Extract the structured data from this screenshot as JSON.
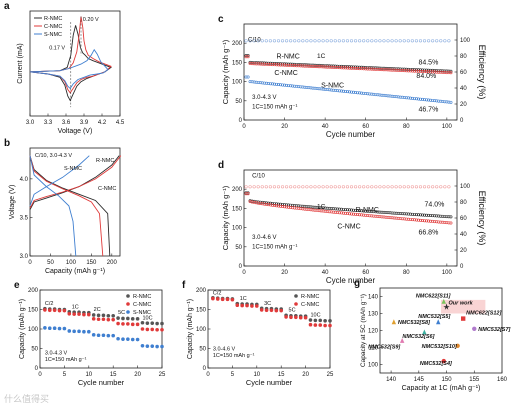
{
  "watermark": "什么值得买",
  "chart_data": [
    {
      "panel": "a",
      "type": "line",
      "xlabel": "Voltage (V)",
      "ylabel": "Current (mA)",
      "xlim": [
        3.0,
        4.5
      ],
      "ylim": [
        -0.4,
        0.55
      ],
      "xticks": [
        "3.0",
        "3.3",
        "3.6",
        "3.9",
        "4.2",
        "4.5"
      ],
      "legend": [
        "R-NMC",
        "C-NMC",
        "S-NMC"
      ],
      "legend_position": "top-left",
      "annotations": [
        "0.20 V",
        "0.17 V"
      ],
      "series": [
        {
          "name": "R-NMC",
          "color": "#2b2b2b",
          "x": [
            3.0,
            3.5,
            3.62,
            3.68,
            3.72,
            3.76,
            3.8,
            3.84,
            3.88,
            3.92,
            3.97,
            4.05,
            4.15,
            4.25,
            4.35,
            4.25,
            4.15,
            4.05,
            3.95,
            3.85,
            3.78,
            3.72,
            3.67,
            3.63,
            3.58,
            3.5,
            3.3,
            3.0
          ],
          "y": [
            0.0,
            0.01,
            0.04,
            0.15,
            0.33,
            0.42,
            0.34,
            0.22,
            0.17,
            0.15,
            0.12,
            0.1,
            0.08,
            0.06,
            0.04,
            0.0,
            -0.02,
            -0.04,
            -0.06,
            -0.09,
            -0.13,
            -0.2,
            -0.26,
            -0.22,
            -0.12,
            -0.05,
            -0.02,
            0.0
          ]
        },
        {
          "name": "C-NMC",
          "color": "#e03a3a",
          "x": [
            3.0,
            3.5,
            3.65,
            3.72,
            3.78,
            3.82,
            3.85,
            3.88,
            3.9,
            3.93,
            3.97,
            4.05,
            4.15,
            4.25,
            4.35,
            4.25,
            4.15,
            4.05,
            3.95,
            3.85,
            3.78,
            3.72,
            3.67,
            3.63,
            3.58,
            3.5,
            3.3,
            3.0
          ],
          "y": [
            0.0,
            0.01,
            0.03,
            0.08,
            0.18,
            0.34,
            0.5,
            0.4,
            0.28,
            0.2,
            0.15,
            0.12,
            0.09,
            0.07,
            0.05,
            0.0,
            -0.02,
            -0.04,
            -0.05,
            -0.07,
            -0.1,
            -0.15,
            -0.19,
            -0.16,
            -0.09,
            -0.04,
            -0.02,
            0.0
          ]
        },
        {
          "name": "S-NMC",
          "color": "#3f7fd0",
          "x": [
            3.0,
            3.5,
            3.65,
            3.75,
            3.85,
            3.95,
            4.02,
            4.07,
            4.12,
            4.18,
            4.25,
            4.3,
            4.22,
            4.12,
            4.0,
            3.9,
            3.8,
            3.72,
            3.67,
            3.63,
            3.58,
            3.5,
            3.3,
            3.0
          ],
          "y": [
            0.0,
            0.01,
            0.03,
            0.05,
            0.07,
            0.1,
            0.15,
            0.2,
            0.16,
            0.09,
            0.05,
            0.02,
            -0.01,
            -0.02,
            -0.03,
            -0.05,
            -0.07,
            -0.11,
            -0.15,
            -0.13,
            -0.08,
            -0.04,
            -0.02,
            0.0
          ]
        }
      ]
    },
    {
      "panel": "b",
      "type": "line",
      "xlabel": "Capacity (mAh g⁻¹)",
      "ylabel": "Voltage (V)",
      "xlim": [
        0,
        220
      ],
      "ylim": [
        3.0,
        4.4
      ],
      "xticks": [
        "0",
        "50",
        "100",
        "150",
        "200"
      ],
      "yticks": [
        "3.0",
        "3.5",
        "4.0"
      ],
      "annotations": [
        "C/10, 3.0-4.3 V",
        "R-NMC",
        "C-NMC",
        "S-NMC"
      ],
      "series": [
        {
          "name": "R-NMC",
          "color": "#2b2b2b",
          "charge_x": [
            0,
            10,
            40,
            80,
            120,
            160,
            200,
            218
          ],
          "charge_y": [
            3.6,
            3.7,
            3.75,
            3.82,
            3.9,
            4.02,
            4.18,
            4.3
          ],
          "discharge_x": [
            0,
            10,
            40,
            80,
            120,
            160,
            190,
            195
          ],
          "discharge_y": [
            4.3,
            4.12,
            3.98,
            3.88,
            3.8,
            3.72,
            3.55,
            3.0
          ]
        },
        {
          "name": "C-NMC",
          "color": "#e03a3a",
          "charge_x": [
            0,
            10,
            40,
            80,
            120,
            160,
            200,
            222
          ],
          "charge_y": [
            3.62,
            3.72,
            3.77,
            3.83,
            3.9,
            4.0,
            4.15,
            4.3
          ],
          "discharge_x": [
            0,
            10,
            40,
            80,
            120,
            150,
            170,
            178
          ],
          "discharge_y": [
            4.3,
            4.1,
            3.97,
            3.87,
            3.78,
            3.7,
            3.55,
            3.0
          ]
        },
        {
          "name": "S-NMC",
          "color": "#3f7fd0",
          "charge_x": [
            0,
            10,
            40,
            80,
            120,
            145
          ],
          "charge_y": [
            3.65,
            3.8,
            3.9,
            4.02,
            4.18,
            4.3
          ],
          "discharge_x": [
            0,
            10,
            40,
            70,
            95,
            105,
            112
          ],
          "discharge_y": [
            4.3,
            4.05,
            3.9,
            3.78,
            3.65,
            3.45,
            3.0
          ]
        }
      ]
    },
    {
      "panel": "c",
      "type": "scatter",
      "xlabel": "Cycle number",
      "ylabel": "Capacity (mAh g⁻¹)",
      "y2label": "Efficiency (%)",
      "xlim": [
        0,
        105
      ],
      "ylim": [
        0,
        250
      ],
      "y2lim": [
        0,
        120
      ],
      "xticks": [
        "0",
        "20",
        "40",
        "60",
        "80",
        "100"
      ],
      "yticks": [
        "0",
        "50",
        "100",
        "150",
        "200"
      ],
      "y2ticks": [
        "0",
        "20",
        "40",
        "60",
        "80",
        "100"
      ],
      "annotations": [
        "C/10",
        "1C",
        "R-NMC",
        "C-NMC",
        "S-NMC",
        "84.5%",
        "84.0%",
        "46.7%",
        "3.0-4.3 V",
        "1C=150 mAh g⁻¹"
      ],
      "series": [
        {
          "name": "R-NMC",
          "color": "#2b2b2b",
          "start": 150,
          "end": 127
        },
        {
          "name": "C-NMC",
          "color": "#e03a3a",
          "start": 147,
          "end": 123
        },
        {
          "name": "S-NMC",
          "color": "#3f7fd0",
          "start": 100,
          "end": 46
        },
        {
          "name": "Efficiency",
          "color": "#8fb0e0",
          "value": 99
        }
      ]
    },
    {
      "panel": "d",
      "type": "scatter",
      "xlabel": "Cycle number",
      "ylabel": "Capacity (mAh g⁻¹)",
      "y2label": "Efficiency (%)",
      "xlim": [
        0,
        105
      ],
      "ylim": [
        0,
        250
      ],
      "y2lim": [
        0,
        120
      ],
      "xticks": [
        "0",
        "20",
        "40",
        "60",
        "80",
        "100"
      ],
      "yticks": [
        "0",
        "50",
        "100",
        "150",
        "200"
      ],
      "y2ticks": [
        "0",
        "20",
        "40",
        "60",
        "80",
        "100"
      ],
      "annotations": [
        "C/10",
        "1C",
        "R-NMC",
        "C-NMC",
        "74.0%",
        "66.8%",
        "3.0-4.6 V",
        "1C=150 mAh g⁻¹"
      ],
      "series": [
        {
          "name": "R-NMC",
          "color": "#2b2b2b",
          "start": 170,
          "end": 128
        },
        {
          "name": "C-NMC",
          "color": "#e03a3a",
          "start": 168,
          "end": 112
        },
        {
          "name": "Efficiency",
          "color": "#f0a0a0",
          "value": 99
        }
      ]
    },
    {
      "panel": "e",
      "type": "scatter",
      "xlabel": "Cycle number",
      "ylabel": "Capacity (mAh g⁻¹)",
      "xlim": [
        0,
        25
      ],
      "ylim": [
        0,
        200
      ],
      "xticks": [
        "0",
        "5",
        "10",
        "15",
        "20",
        "25"
      ],
      "yticks": [
        "0",
        "50",
        "100",
        "150",
        "200"
      ],
      "legend": [
        "R-NMC",
        "C-NMC",
        "S-NMC"
      ],
      "legend_position": "top-right",
      "annotations": [
        "C/2",
        "1C",
        "2C",
        "5C",
        "10C",
        "3.0-4.3 V",
        "1C=150 mAh g⁻¹"
      ],
      "series": [
        {
          "name": "R-NMC",
          "color": "#555555",
          "values": [
            152,
            151,
            151,
            150,
            150,
            144,
            143,
            143,
            142,
            142,
            136,
            135,
            135,
            134,
            134,
            128,
            127,
            127,
            126,
            126,
            116,
            115,
            115,
            114,
            114
          ]
        },
        {
          "name": "C-NMC",
          "color": "#e03a3a",
          "values": [
            149,
            148,
            148,
            147,
            147,
            139,
            138,
            138,
            137,
            137,
            126,
            125,
            125,
            124,
            124,
            114,
            113,
            113,
            112,
            112,
            100,
            99,
            99,
            98,
            98
          ]
        },
        {
          "name": "S-NMC",
          "color": "#3f7fd0",
          "values": [
            103,
            102,
            102,
            101,
            101,
            95,
            94,
            94,
            93,
            93,
            85,
            84,
            84,
            83,
            83,
            75,
            74,
            74,
            73,
            73,
            57,
            56,
            56,
            55,
            55
          ]
        }
      ]
    },
    {
      "panel": "f",
      "type": "scatter",
      "xlabel": "Cycle number",
      "ylabel": "Capacity (mAh g⁻¹)",
      "xlim": [
        0,
        25
      ],
      "ylim": [
        0,
        200
      ],
      "xticks": [
        "0",
        "5",
        "10",
        "15",
        "20",
        "25"
      ],
      "yticks": [
        "0",
        "50",
        "100",
        "150",
        "200"
      ],
      "legend": [
        "R-NMC",
        "C-NMC"
      ],
      "legend_position": "top-right",
      "annotations": [
        "C/2",
        "1C",
        "3C",
        "5C",
        "10C",
        "3.0-4.6 V",
        "1C=150 mAh g⁻¹"
      ],
      "series": [
        {
          "name": "R-NMC",
          "color": "#555555",
          "values": [
            180,
            179,
            178,
            178,
            177,
            165,
            164,
            164,
            163,
            163,
            153,
            152,
            152,
            151,
            151,
            135,
            134,
            134,
            133,
            133,
            123,
            122,
            122,
            121,
            121
          ]
        },
        {
          "name": "C-NMC",
          "color": "#e03a3a",
          "values": [
            178,
            177,
            176,
            176,
            175,
            161,
            160,
            160,
            159,
            159,
            149,
            148,
            148,
            147,
            147,
            131,
            130,
            130,
            129,
            129,
            111,
            110,
            110,
            109,
            109
          ]
        }
      ]
    },
    {
      "panel": "g",
      "type": "scatter",
      "xlabel": "Capacity at 1C (mAh g⁻¹)",
      "ylabel": "Capacity at 5C (mAh g⁻¹)",
      "xlim": [
        138,
        160
      ],
      "ylim": [
        95,
        145
      ],
      "xticks": [
        "140",
        "145",
        "150",
        "155",
        "160"
      ],
      "yticks": [
        "100",
        "110",
        "120",
        "130",
        "140"
      ],
      "points": [
        {
          "label": "Our work",
          "x": 150,
          "y": 134,
          "color": "#2b2b2b"
        },
        {
          "label": "NMC622[S11]",
          "x": 149.5,
          "y": 137,
          "color": "#7cc35a"
        },
        {
          "label": "NMC532[S8]",
          "x": 140.5,
          "y": 125,
          "color": "#e0a030"
        },
        {
          "label": "NMC532[S5]",
          "x": 148.5,
          "y": 125,
          "color": "#3f7fd0"
        },
        {
          "label": "NMC622[S12]",
          "x": 153,
          "y": 127,
          "color": "#e03a3a"
        },
        {
          "label": "NMC532[S6]",
          "x": 146,
          "y": 119,
          "color": "#3bb0a0"
        },
        {
          "label": "NMC532[S7]",
          "x": 155,
          "y": 121,
          "color": "#b07acc"
        },
        {
          "label": "NMC532[S9]",
          "x": 142,
          "y": 114,
          "color": "#e07ab0"
        },
        {
          "label": "NMC532[S10]",
          "x": 152,
          "y": 111,
          "color": "#e08a30"
        },
        {
          "label": "NMC532[S4]",
          "x": 149.5,
          "y": 102,
          "color": "#e03a3a"
        }
      ]
    }
  ]
}
